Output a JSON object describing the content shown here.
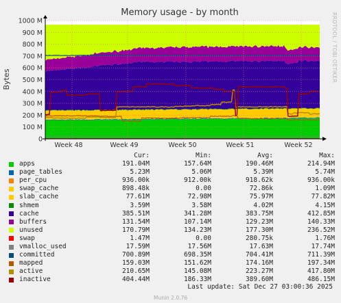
{
  "chart_data": {
    "type": "area",
    "title": "Memory usage - by month",
    "ylabel": "Bytes",
    "side_text": "RRDTOOL / TOBI OETIKER",
    "ylim": [
      0,
      1000
    ],
    "y_ticks": [
      "0",
      "100 M",
      "200 M",
      "300 M",
      "400 M",
      "500 M",
      "600 M",
      "700 M",
      "800 M",
      "900 M",
      "1000 M"
    ],
    "x_ticks": [
      "Week 48",
      "Week 49",
      "Week 50",
      "Week 51",
      "Week 52"
    ],
    "grid": true,
    "series": [
      {
        "name": "apps",
        "color": "#00cc00",
        "cur": "191.04M",
        "min": "157.64M",
        "avg": "190.46M",
        "max": "214.94M"
      },
      {
        "name": "page_tables",
        "color": "#0066b3",
        "cur": "5.23M",
        "min": "5.06M",
        "avg": "5.39M",
        "max": "5.74M"
      },
      {
        "name": "per_cpu",
        "color": "#ff8000",
        "cur": "936.00k",
        "min": "912.00k",
        "avg": "918.62k",
        "max": "936.00k"
      },
      {
        "name": "swap_cache",
        "color": "#ffcc00",
        "cur": "898.48k",
        "min": "0.00",
        "avg": "72.86k",
        "max": "1.09M"
      },
      {
        "name": "slab_cache",
        "color": "#ffcc00",
        "cur": "77.61M",
        "min": "72.98M",
        "avg": "75.97M",
        "max": "77.82M"
      },
      {
        "name": "shmem",
        "color": "#008f00",
        "cur": "3.59M",
        "min": "3.58M",
        "avg": "4.02M",
        "max": "4.15M"
      },
      {
        "name": "cache",
        "color": "#330099",
        "cur": "385.51M",
        "min": "341.28M",
        "avg": "383.75M",
        "max": "412.85M"
      },
      {
        "name": "buffers",
        "color": "#990099",
        "cur": "131.54M",
        "min": "107.14M",
        "avg": "129.23M",
        "max": "140.33M"
      },
      {
        "name": "unused",
        "color": "#ccff00",
        "cur": "170.79M",
        "min": "134.23M",
        "avg": "177.30M",
        "max": "236.52M"
      },
      {
        "name": "swap",
        "color": "#ff0000",
        "cur": "1.47M",
        "min": "0.00",
        "avg": "280.75k",
        "max": "1.76M"
      },
      {
        "name": "vmalloc_used",
        "color": "#808080",
        "cur": "17.59M",
        "min": "17.56M",
        "avg": "17.63M",
        "max": "17.74M"
      },
      {
        "name": "committed",
        "color": "#004d80",
        "cur": "700.89M",
        "min": "698.35M",
        "avg": "704.41M",
        "max": "711.39M"
      },
      {
        "name": "mapped",
        "color": "#b35a00",
        "cur": "159.03M",
        "min": "151.62M",
        "avg": "174.16M",
        "max": "197.34M"
      },
      {
        "name": "active",
        "color": "#b38f00",
        "cur": "210.65M",
        "min": "145.08M",
        "avg": "223.27M",
        "max": "417.80M"
      },
      {
        "name": "inactive",
        "color": "#990000",
        "cur": "404.44M",
        "min": "186.33M",
        "avg": "389.60M",
        "max": "486.15M"
      }
    ]
  },
  "legend": {
    "headers": {
      "cur": "Cur:",
      "min": "Min:",
      "avg": "Avg:",
      "max": "Max:"
    }
  },
  "last_update": "Last update: Sat Dec 27 03:00:36 2025",
  "version": "Munin 2.0.76"
}
